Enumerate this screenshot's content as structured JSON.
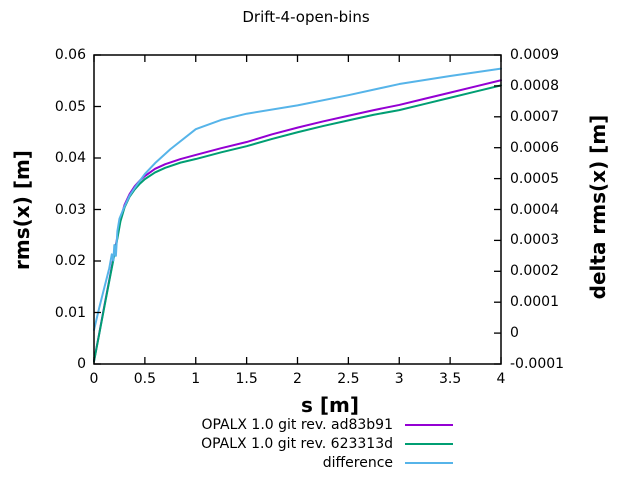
{
  "chart_data": {
    "type": "line",
    "title": "Drift-4-open-bins",
    "xlabel": "s [m]",
    "ylabel_left": "rms(x) [m]",
    "ylabel_right": "delta rms(x) [m]",
    "xlim": [
      0,
      4
    ],
    "ylim_left": [
      0,
      0.06
    ],
    "ylim_right": [
      -0.0001,
      0.0009
    ],
    "grid": false,
    "legend_position": "below-right",
    "x_tick_values": [
      0,
      0.5,
      1,
      1.5,
      2,
      2.5,
      3,
      3.5,
      4
    ],
    "x_tick_labels": [
      "0",
      "0.5",
      "1",
      "1.5",
      "2",
      "2.5",
      "3",
      "3.5",
      "4"
    ],
    "y_left_tick_values": [
      0,
      0.01,
      0.02,
      0.03,
      0.04,
      0.05,
      0.06
    ],
    "y_left_tick_labels": [
      "0",
      "0.01",
      "0.02",
      "0.03",
      "0.04",
      "0.05",
      "0.06"
    ],
    "y_right_tick_values": [
      -0.0001,
      0,
      0.0001,
      0.0002,
      0.0003,
      0.0004,
      0.0005,
      0.0006,
      0.0007,
      0.0008,
      0.0009
    ],
    "y_right_tick_labels": [
      "-0.0001",
      "0",
      "0.0001",
      "0.0002",
      "0.0003",
      "0.0004",
      "0.0005",
      "0.0006",
      "0.0007",
      "0.0008",
      "0.0009"
    ],
    "series": [
      {
        "name": "OPALX 1.0 git rev. ad83b91",
        "color": "#9400d3",
        "axis": "left",
        "x": [
          0,
          0.05,
          0.1,
          0.15,
          0.2,
          0.23,
          0.26,
          0.3,
          0.35,
          0.4,
          0.45,
          0.5,
          0.6,
          0.7,
          0.85,
          1.0,
          1.25,
          1.5,
          1.75,
          2.0,
          2.25,
          2.5,
          2.75,
          3.0,
          3.25,
          3.5,
          3.75,
          4.0
        ],
        "y": [
          0.0006,
          0.0058,
          0.0111,
          0.0163,
          0.0215,
          0.0247,
          0.0281,
          0.0309,
          0.033,
          0.0345,
          0.0356,
          0.0365,
          0.0379,
          0.0388,
          0.0398,
          0.0406,
          0.0419,
          0.0431,
          0.0446,
          0.0459,
          0.0471,
          0.0482,
          0.0493,
          0.0503,
          0.0515,
          0.0527,
          0.0539,
          0.0551
        ]
      },
      {
        "name": "OPALX 1.0 git rev. 623313d",
        "color": "#009e73",
        "axis": "left",
        "x": [
          0,
          0.05,
          0.1,
          0.15,
          0.2,
          0.23,
          0.26,
          0.3,
          0.35,
          0.4,
          0.45,
          0.5,
          0.6,
          0.7,
          0.85,
          1.0,
          1.25,
          1.5,
          1.75,
          2.0,
          2.25,
          2.5,
          2.75,
          3.0,
          3.25,
          3.5,
          3.75,
          4.0
        ],
        "y": [
          0.0005,
          0.0057,
          0.0109,
          0.0161,
          0.0212,
          0.0244,
          0.0277,
          0.0304,
          0.0325,
          0.0339,
          0.035,
          0.0359,
          0.0372,
          0.0381,
          0.0391,
          0.0398,
          0.0411,
          0.0423,
          0.0437,
          0.045,
          0.0462,
          0.0473,
          0.0484,
          0.0493,
          0.0505,
          0.0517,
          0.0529,
          0.0541
        ]
      },
      {
        "name": "difference",
        "color": "#56b4e9",
        "axis": "right",
        "x": [
          0,
          0.05,
          0.1,
          0.15,
          0.175,
          0.19,
          0.2,
          0.215,
          0.23,
          0.25,
          0.3,
          0.35,
          0.4,
          0.5,
          0.6,
          0.75,
          1.0,
          1.25,
          1.5,
          2.0,
          2.5,
          3.0,
          3.5,
          4.0
        ],
        "y": [
          1e-05,
          8e-05,
          0.000145,
          0.00021,
          0.000255,
          0.000235,
          0.000285,
          0.00025,
          0.00033,
          0.00037,
          0.00041,
          0.000445,
          0.00047,
          0.000515,
          0.00055,
          0.000595,
          0.00066,
          0.00069,
          0.00071,
          0.000737,
          0.00077,
          0.000806,
          0.000832,
          0.000856
        ]
      }
    ]
  }
}
